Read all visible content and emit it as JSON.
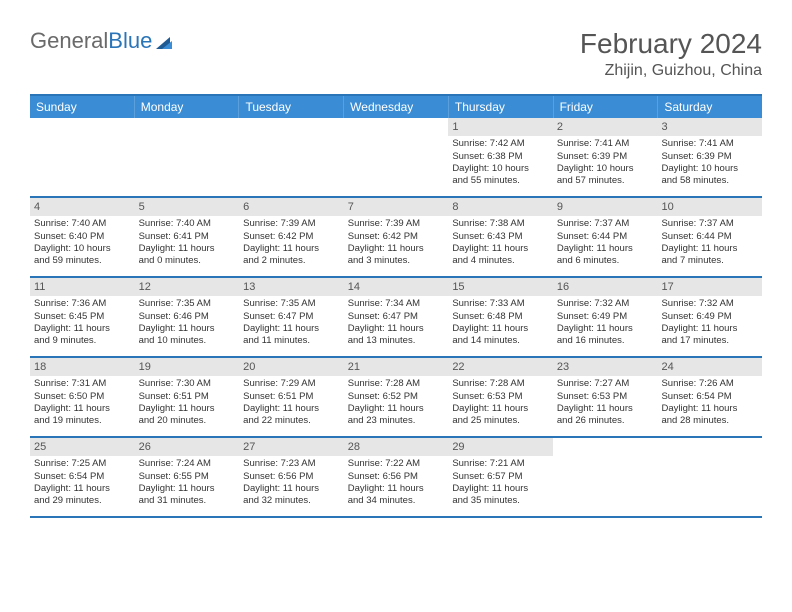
{
  "logo": {
    "text1": "General",
    "text2": "Blue"
  },
  "title": "February 2024",
  "location": "Zhijin, Guizhou, China",
  "days_of_week": [
    "Sunday",
    "Monday",
    "Tuesday",
    "Wednesday",
    "Thursday",
    "Friday",
    "Saturday"
  ],
  "colors": {
    "header_bar": "#3a8cd4",
    "border": "#2a74b8",
    "daynum_bg": "#e6e6e6",
    "text": "#333333",
    "logo_gray": "#6a6a6a",
    "logo_blue": "#2a74b8"
  },
  "weeks": [
    [
      null,
      null,
      null,
      null,
      {
        "n": "1",
        "sr": "Sunrise: 7:42 AM",
        "ss": "Sunset: 6:38 PM",
        "d1": "Daylight: 10 hours",
        "d2": "and 55 minutes."
      },
      {
        "n": "2",
        "sr": "Sunrise: 7:41 AM",
        "ss": "Sunset: 6:39 PM",
        "d1": "Daylight: 10 hours",
        "d2": "and 57 minutes."
      },
      {
        "n": "3",
        "sr": "Sunrise: 7:41 AM",
        "ss": "Sunset: 6:39 PM",
        "d1": "Daylight: 10 hours",
        "d2": "and 58 minutes."
      }
    ],
    [
      {
        "n": "4",
        "sr": "Sunrise: 7:40 AM",
        "ss": "Sunset: 6:40 PM",
        "d1": "Daylight: 10 hours",
        "d2": "and 59 minutes."
      },
      {
        "n": "5",
        "sr": "Sunrise: 7:40 AM",
        "ss": "Sunset: 6:41 PM",
        "d1": "Daylight: 11 hours",
        "d2": "and 0 minutes."
      },
      {
        "n": "6",
        "sr": "Sunrise: 7:39 AM",
        "ss": "Sunset: 6:42 PM",
        "d1": "Daylight: 11 hours",
        "d2": "and 2 minutes."
      },
      {
        "n": "7",
        "sr": "Sunrise: 7:39 AM",
        "ss": "Sunset: 6:42 PM",
        "d1": "Daylight: 11 hours",
        "d2": "and 3 minutes."
      },
      {
        "n": "8",
        "sr": "Sunrise: 7:38 AM",
        "ss": "Sunset: 6:43 PM",
        "d1": "Daylight: 11 hours",
        "d2": "and 4 minutes."
      },
      {
        "n": "9",
        "sr": "Sunrise: 7:37 AM",
        "ss": "Sunset: 6:44 PM",
        "d1": "Daylight: 11 hours",
        "d2": "and 6 minutes."
      },
      {
        "n": "10",
        "sr": "Sunrise: 7:37 AM",
        "ss": "Sunset: 6:44 PM",
        "d1": "Daylight: 11 hours",
        "d2": "and 7 minutes."
      }
    ],
    [
      {
        "n": "11",
        "sr": "Sunrise: 7:36 AM",
        "ss": "Sunset: 6:45 PM",
        "d1": "Daylight: 11 hours",
        "d2": "and 9 minutes."
      },
      {
        "n": "12",
        "sr": "Sunrise: 7:35 AM",
        "ss": "Sunset: 6:46 PM",
        "d1": "Daylight: 11 hours",
        "d2": "and 10 minutes."
      },
      {
        "n": "13",
        "sr": "Sunrise: 7:35 AM",
        "ss": "Sunset: 6:47 PM",
        "d1": "Daylight: 11 hours",
        "d2": "and 11 minutes."
      },
      {
        "n": "14",
        "sr": "Sunrise: 7:34 AM",
        "ss": "Sunset: 6:47 PM",
        "d1": "Daylight: 11 hours",
        "d2": "and 13 minutes."
      },
      {
        "n": "15",
        "sr": "Sunrise: 7:33 AM",
        "ss": "Sunset: 6:48 PM",
        "d1": "Daylight: 11 hours",
        "d2": "and 14 minutes."
      },
      {
        "n": "16",
        "sr": "Sunrise: 7:32 AM",
        "ss": "Sunset: 6:49 PM",
        "d1": "Daylight: 11 hours",
        "d2": "and 16 minutes."
      },
      {
        "n": "17",
        "sr": "Sunrise: 7:32 AM",
        "ss": "Sunset: 6:49 PM",
        "d1": "Daylight: 11 hours",
        "d2": "and 17 minutes."
      }
    ],
    [
      {
        "n": "18",
        "sr": "Sunrise: 7:31 AM",
        "ss": "Sunset: 6:50 PM",
        "d1": "Daylight: 11 hours",
        "d2": "and 19 minutes."
      },
      {
        "n": "19",
        "sr": "Sunrise: 7:30 AM",
        "ss": "Sunset: 6:51 PM",
        "d1": "Daylight: 11 hours",
        "d2": "and 20 minutes."
      },
      {
        "n": "20",
        "sr": "Sunrise: 7:29 AM",
        "ss": "Sunset: 6:51 PM",
        "d1": "Daylight: 11 hours",
        "d2": "and 22 minutes."
      },
      {
        "n": "21",
        "sr": "Sunrise: 7:28 AM",
        "ss": "Sunset: 6:52 PM",
        "d1": "Daylight: 11 hours",
        "d2": "and 23 minutes."
      },
      {
        "n": "22",
        "sr": "Sunrise: 7:28 AM",
        "ss": "Sunset: 6:53 PM",
        "d1": "Daylight: 11 hours",
        "d2": "and 25 minutes."
      },
      {
        "n": "23",
        "sr": "Sunrise: 7:27 AM",
        "ss": "Sunset: 6:53 PM",
        "d1": "Daylight: 11 hours",
        "d2": "and 26 minutes."
      },
      {
        "n": "24",
        "sr": "Sunrise: 7:26 AM",
        "ss": "Sunset: 6:54 PM",
        "d1": "Daylight: 11 hours",
        "d2": "and 28 minutes."
      }
    ],
    [
      {
        "n": "25",
        "sr": "Sunrise: 7:25 AM",
        "ss": "Sunset: 6:54 PM",
        "d1": "Daylight: 11 hours",
        "d2": "and 29 minutes."
      },
      {
        "n": "26",
        "sr": "Sunrise: 7:24 AM",
        "ss": "Sunset: 6:55 PM",
        "d1": "Daylight: 11 hours",
        "d2": "and 31 minutes."
      },
      {
        "n": "27",
        "sr": "Sunrise: 7:23 AM",
        "ss": "Sunset: 6:56 PM",
        "d1": "Daylight: 11 hours",
        "d2": "and 32 minutes."
      },
      {
        "n": "28",
        "sr": "Sunrise: 7:22 AM",
        "ss": "Sunset: 6:56 PM",
        "d1": "Daylight: 11 hours",
        "d2": "and 34 minutes."
      },
      {
        "n": "29",
        "sr": "Sunrise: 7:21 AM",
        "ss": "Sunset: 6:57 PM",
        "d1": "Daylight: 11 hours",
        "d2": "and 35 minutes."
      },
      null,
      null
    ]
  ]
}
